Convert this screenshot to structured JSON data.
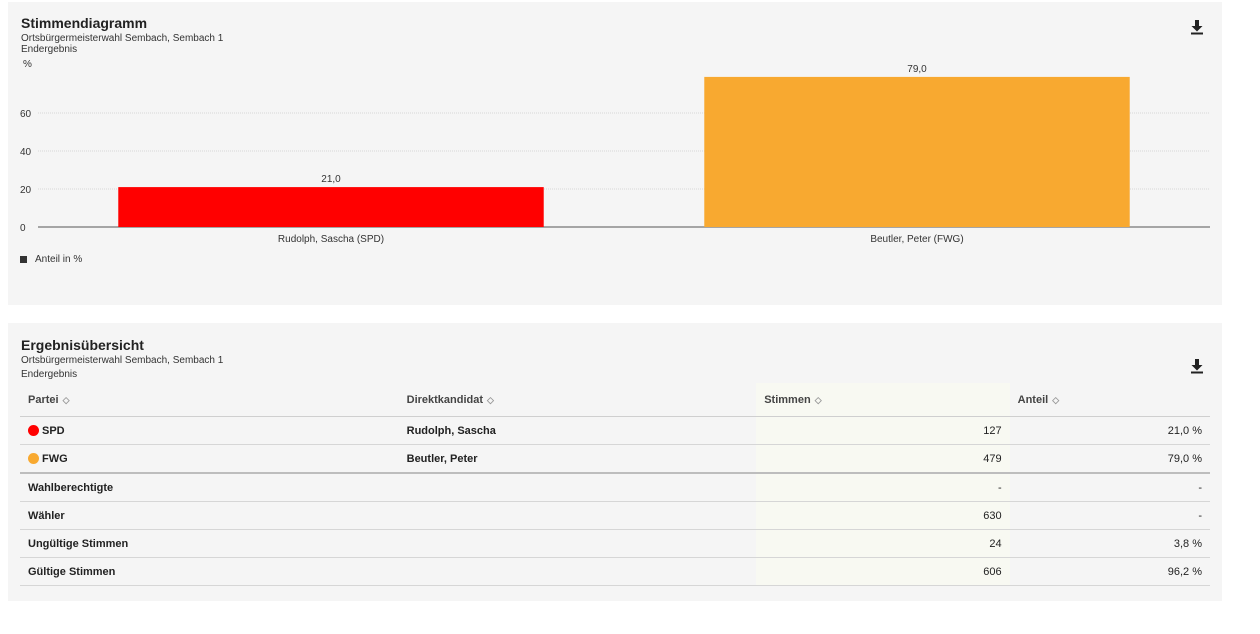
{
  "chart_panel": {
    "title": "Stimmendiagramm",
    "subtitle": "Ortsbürgermeisterwahl Sembach, Sembach 1",
    "status": "Endergebnis"
  },
  "chart_data": {
    "type": "bar",
    "categories": [
      "Rudolph, Sascha (SPD)",
      "Beutler, Peter (FWG)"
    ],
    "values": [
      21.0,
      79.0
    ],
    "value_labels": [
      "21,0",
      "79,0"
    ],
    "colors": [
      "#ff0000",
      "#f8a930"
    ],
    "ylabel": "%",
    "yticks": [
      "0",
      "20",
      "40",
      "60"
    ],
    "ylim": [
      0,
      80
    ],
    "grid": true,
    "legend": "Anteil in %",
    "legend_position": "bottom-left"
  },
  "table_panel": {
    "title": "Ergebnisübersicht",
    "subtitle": "Ortsbürgermeisterwahl Sembach, Sembach 1",
    "status": "Endergebnis"
  },
  "table": {
    "headers": [
      "Partei",
      "Direktkandidat",
      "Stimmen",
      "Anteil"
    ],
    "parties": [
      {
        "party": "SPD",
        "color": "#ff0000",
        "candidate": "Rudolph, Sascha",
        "votes": "127",
        "share": "21,0 %"
      },
      {
        "party": "FWG",
        "color": "#f8a930",
        "candidate": "Beutler, Peter",
        "votes": "479",
        "share": "79,0 %"
      }
    ],
    "summary": [
      {
        "label": "Wahlberechtigte",
        "votes": "-",
        "share": "-"
      },
      {
        "label": "Wähler",
        "votes": "630",
        "share": "-"
      },
      {
        "label": "Ungültige Stimmen",
        "votes": "24",
        "share": "3,8 %"
      },
      {
        "label": "Gültige Stimmen",
        "votes": "606",
        "share": "96,2 %"
      }
    ]
  },
  "icons": {
    "download": "download-icon",
    "sort": "sort-icon"
  }
}
